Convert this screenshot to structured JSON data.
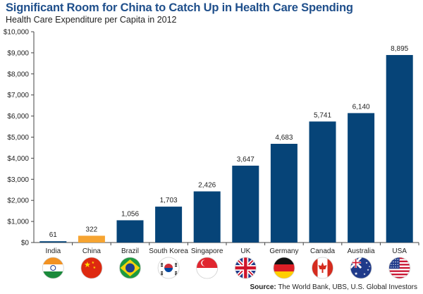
{
  "header": {
    "title": "Significant Room for China to Catch Up in Health Care Spending",
    "subtitle": "Health Care Expenditure per Capita in 2012"
  },
  "source": {
    "label": "Source:",
    "text": "The World Bank, UBS, U.S. Global Investors"
  },
  "colors": {
    "bar": "#064478",
    "highlight": "#f6a431",
    "title": "#1f4f8b"
  },
  "chart_data": {
    "type": "bar",
    "title": "Health Care Expenditure per Capita in 2012",
    "categories": [
      "India",
      "China",
      "Brazil",
      "South Korea",
      "Singapore",
      "UK",
      "Germany",
      "Canada",
      "Australia",
      "USA"
    ],
    "values": [
      61,
      322,
      1056,
      1703,
      2426,
      3647,
      4683,
      5741,
      6140,
      8895
    ],
    "data_labels": [
      "61",
      "322",
      "1,056",
      "1,703",
      "2,426",
      "3,647",
      "4,683",
      "5,741",
      "6,140",
      "8,895"
    ],
    "highlight_category": "China",
    "ylim": [
      0,
      10000
    ],
    "yticks": [
      0,
      1000,
      2000,
      3000,
      4000,
      5000,
      6000,
      7000,
      8000,
      9000,
      10000
    ],
    "ytick_labels": [
      "$0",
      "$1,000",
      "$2,000",
      "$3,000",
      "$4,000",
      "$5,000",
      "$6,000",
      "$7,000",
      "$8,000",
      "$9,000",
      "$10,000"
    ],
    "grid": false,
    "flag_icons": [
      "india-flag-icon",
      "china-flag-icon",
      "brazil-flag-icon",
      "south-korea-flag-icon",
      "singapore-flag-icon",
      "uk-flag-icon",
      "germany-flag-icon",
      "canada-flag-icon",
      "australia-flag-icon",
      "usa-flag-icon"
    ]
  }
}
